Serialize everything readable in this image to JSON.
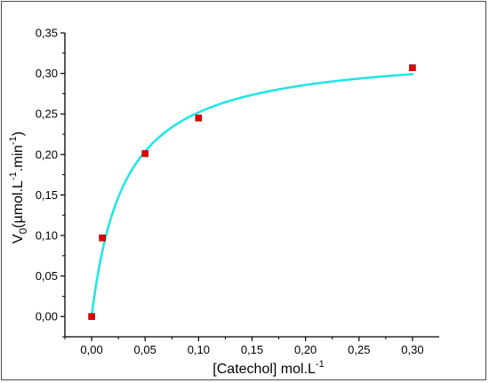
{
  "chart_data": {
    "type": "scatter",
    "title": "",
    "xlabel": "[Catechol] mol.L",
    "xlabel_sup": "-1",
    "ylabel_parts": [
      "V",
      "0",
      "(µmol.L",
      "-1",
      ".min",
      "-1",
      ")"
    ],
    "xlim": [
      -0.025,
      0.325
    ],
    "ylim": [
      -0.025,
      0.35
    ],
    "x_ticks": [
      0.0,
      0.05,
      0.1,
      0.15,
      0.2,
      0.25,
      0.3
    ],
    "x_tick_labels": [
      "0,00",
      "0,05",
      "0,10",
      "0,15",
      "0,20",
      "0,25",
      "0,30"
    ],
    "y_ticks": [
      0.0,
      0.05,
      0.1,
      0.15,
      0.2,
      0.25,
      0.3,
      0.35
    ],
    "y_tick_labels": [
      "0,00",
      "0,05",
      "0,10",
      "0,15",
      "0,20",
      "0,25",
      "0,30",
      "0,35"
    ],
    "grid": false,
    "series": [
      {
        "kind": "points",
        "color": "#e00000",
        "x": [
          0.0,
          0.01,
          0.05,
          0.1,
          0.3
        ],
        "y": [
          0.0,
          0.097,
          0.201,
          0.245,
          0.307
        ]
      },
      {
        "kind": "fit-curve",
        "model": "michaelis-menten",
        "color": "#22e6e6",
        "vmax": 0.33,
        "km": 0.031,
        "x_range": [
          0.0,
          0.3
        ]
      }
    ]
  }
}
